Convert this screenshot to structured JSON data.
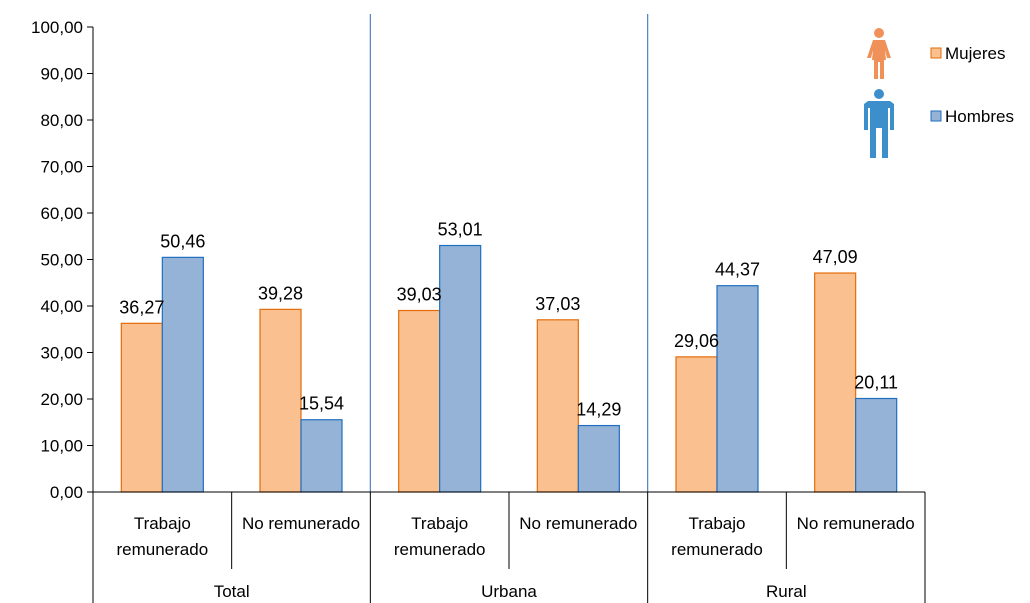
{
  "chart_data": {
    "type": "bar",
    "groups": [
      {
        "label": "Total",
        "categories": [
          "Trabajo remunerado",
          "No remunerado"
        ]
      },
      {
        "label": "Urbana",
        "categories": [
          "Trabajo remunerado",
          "No remunerado"
        ]
      },
      {
        "label": "Rural",
        "categories": [
          "Trabajo remunerado",
          "No remunerado"
        ]
      }
    ],
    "category_lines": {
      "Trabajo remunerado": [
        "Trabajo",
        "remunerado"
      ],
      "No remunerado": [
        "No remunerado"
      ]
    },
    "series": [
      {
        "name": "Mujeres",
        "color": "#FAC090",
        "stroke": "#E46C0A",
        "values": [
          36.27,
          39.28,
          39.03,
          37.03,
          29.06,
          47.09
        ],
        "labels": [
          "36,27",
          "39,28",
          "39,03",
          "37,03",
          "29,06",
          "47,09"
        ]
      },
      {
        "name": "Hombres",
        "color": "#95B3D7",
        "stroke": "#1F6FC0",
        "values": [
          50.46,
          15.54,
          53.01,
          14.29,
          44.37,
          20.11
        ],
        "labels": [
          "50,46",
          "15,54",
          "53,01",
          "14,29",
          "44,37",
          "20,11"
        ]
      }
    ],
    "yticks": [
      "0,00",
      "10,00",
      "20,00",
      "30,00",
      "40,00",
      "50,00",
      "60,00",
      "70,00",
      "80,00",
      "90,00",
      "100,00"
    ],
    "ylim": [
      0,
      100
    ],
    "legend": {
      "position": "top-right",
      "icons": [
        "woman-icon",
        "man-icon"
      ]
    },
    "grid": false
  }
}
